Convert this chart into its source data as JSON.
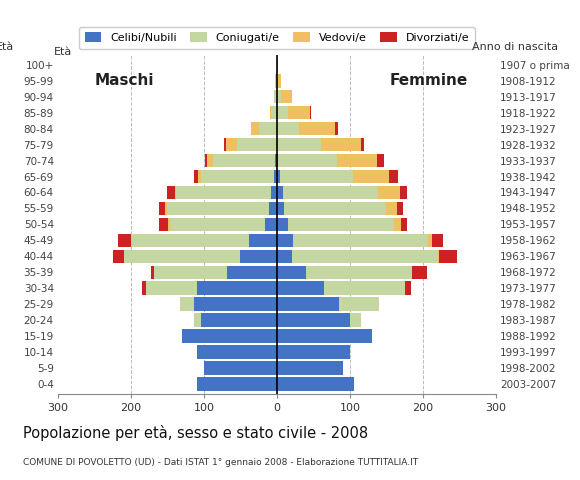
{
  "age_groups": [
    "0-4",
    "5-9",
    "10-14",
    "15-19",
    "20-24",
    "25-29",
    "30-34",
    "35-39",
    "40-44",
    "45-49",
    "50-54",
    "55-59",
    "60-64",
    "65-69",
    "70-74",
    "75-79",
    "80-84",
    "85-89",
    "90-94",
    "95-99",
    "100+"
  ],
  "birth_years": [
    "2003-2007",
    "1998-2002",
    "1993-1997",
    "1988-1992",
    "1983-1987",
    "1978-1982",
    "1973-1977",
    "1968-1972",
    "1963-1967",
    "1958-1962",
    "1953-1957",
    "1948-1952",
    "1943-1947",
    "1938-1942",
    "1933-1937",
    "1928-1932",
    "1923-1927",
    "1918-1922",
    "1913-1917",
    "1908-1912",
    "1907 o prima"
  ],
  "male": {
    "celibe": [
      110,
      100,
      110,
      130,
      104,
      113,
      110,
      68,
      50,
      38,
      17,
      11,
      8,
      4,
      3,
      0,
      0,
      0,
      0,
      0,
      0
    ],
    "coniugato": [
      0,
      0,
      0,
      0,
      10,
      20,
      70,
      100,
      160,
      160,
      130,
      140,
      130,
      100,
      85,
      55,
      25,
      8,
      4,
      2,
      0
    ],
    "vedovo": [
      0,
      0,
      0,
      0,
      0,
      0,
      0,
      0,
      0,
      2,
      2,
      2,
      2,
      4,
      8,
      15,
      10,
      2,
      0,
      0,
      0
    ],
    "divorziato": [
      0,
      0,
      0,
      0,
      0,
      0,
      5,
      5,
      15,
      18,
      12,
      8,
      10,
      6,
      2,
      2,
      0,
      0,
      0,
      0,
      0
    ]
  },
  "female": {
    "nubile": [
      105,
      90,
      100,
      130,
      100,
      85,
      65,
      40,
      20,
      22,
      15,
      10,
      8,
      4,
      2,
      0,
      0,
      0,
      0,
      0,
      0
    ],
    "coniugata": [
      0,
      0,
      0,
      0,
      15,
      55,
      110,
      145,
      200,
      185,
      145,
      140,
      130,
      100,
      80,
      60,
      30,
      15,
      5,
      0,
      0
    ],
    "vedova": [
      0,
      0,
      0,
      0,
      0,
      0,
      0,
      0,
      2,
      5,
      10,
      15,
      30,
      50,
      55,
      55,
      50,
      30,
      15,
      5,
      2
    ],
    "divorziata": [
      0,
      0,
      0,
      0,
      0,
      0,
      8,
      20,
      25,
      15,
      8,
      8,
      10,
      12,
      10,
      4,
      4,
      2,
      0,
      0,
      0
    ]
  },
  "colors": {
    "celibe_nubile": "#4472c4",
    "coniugato_a": "#c5d7a0",
    "vedovo_a": "#f0c060",
    "divorziato_a": "#cc2222"
  },
  "xlim": 300,
  "title": "Popolazione per età, sesso e stato civile - 2008",
  "subtitle": "COMUNE DI POVOLETTO (UD) - Dati ISTAT 1° gennaio 2008 - Elaborazione TUTTITALIA.IT",
  "legend_labels": [
    "Celibi/Nubili",
    "Coniugati/e",
    "Vedovi/e",
    "Divorziati/e"
  ],
  "background_color": "#ffffff",
  "grid_color": "#aaaaaa"
}
